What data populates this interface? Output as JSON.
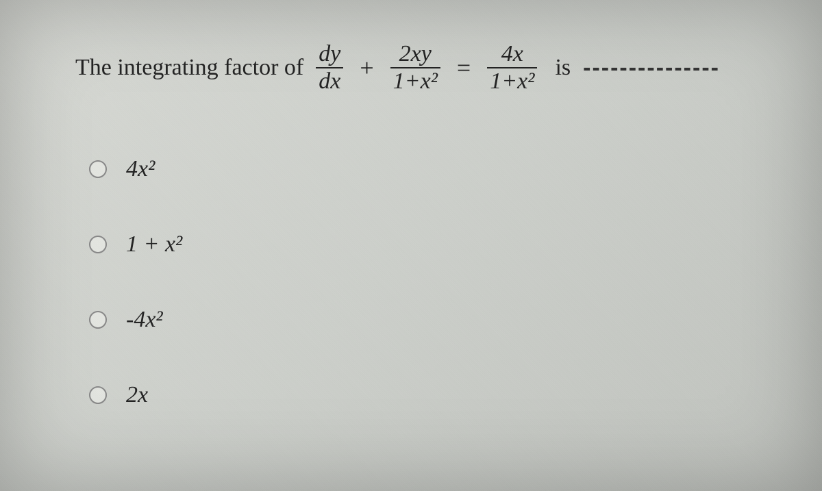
{
  "question": {
    "prefix": "The integrating factor of",
    "frac1": {
      "num": "dy",
      "den": "dx"
    },
    "plus": "+",
    "frac2": {
      "num": "2xy",
      "den": "1+x²"
    },
    "equals": "=",
    "frac3": {
      "num": "4x",
      "den": "1+x²"
    },
    "suffix": "is",
    "dashes": "---------------"
  },
  "options": [
    {
      "label": "4x²"
    },
    {
      "label": "1 + x²"
    },
    {
      "label": "-4x²"
    },
    {
      "label": "2x"
    }
  ],
  "styling": {
    "background_color": "#d2d4cf",
    "text_color": "#222222",
    "radio_border_color": "#888888",
    "font_family": "Times New Roman",
    "question_fontsize": 34,
    "option_fontsize": 34,
    "fraction_line_color": "#222222"
  }
}
